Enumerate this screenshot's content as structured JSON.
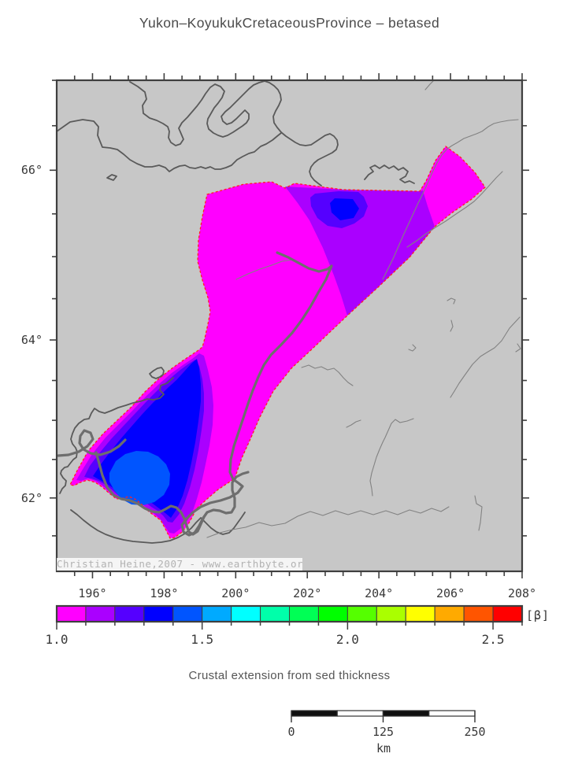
{
  "title": "Yukon–KoyukukCretaceousProvince – betased",
  "map": {
    "watermark": "Christian Heine,2007 - www.earthbyte.org",
    "land_color": "#c7c7c7",
    "coast_color": "#5a5a5a",
    "river_color": "#828282",
    "boundary_color": "#6e6e6e",
    "outline_color": "#ff2222",
    "frame_color": "#3f3f3f",
    "lon_axis": {
      "start": 195,
      "end": 208,
      "minor_step": 0.5,
      "major_ticks": [
        196,
        198,
        200,
        202,
        204,
        206,
        208
      ],
      "labels": [
        "196°",
        "198°",
        "200°",
        "202°",
        "204°",
        "206°",
        "208°"
      ]
    },
    "lat_axis": {
      "start": 61.05,
      "end": 67.08,
      "minor_step": 0.5,
      "major_ticks": [
        62,
        64,
        66
      ],
      "labels": [
        "62°",
        "64°",
        "66°"
      ]
    }
  },
  "beta_zones": [
    {
      "range": "1.0–1.1",
      "color": "#ff00ff"
    },
    {
      "range": "1.1–1.2",
      "color": "#aa00ff"
    },
    {
      "range": "1.2–1.3",
      "color": "#5500ff"
    },
    {
      "range": "1.3–1.4",
      "color": "#0000ff"
    },
    {
      "range": "1.4–1.5",
      "color": "#0055ff"
    }
  ],
  "colorbar": {
    "unit_label": "[β]",
    "min": 1.0,
    "max": 2.6,
    "cell_step": 0.1,
    "colors": [
      "#ff00ff",
      "#aa00ff",
      "#5500ff",
      "#0000ff",
      "#0055ff",
      "#00aaff",
      "#00ffff",
      "#00ffaa",
      "#00ff55",
      "#00ff00",
      "#55ff00",
      "#aaff00",
      "#ffff00",
      "#ffaa00",
      "#ff5500",
      "#ff0000"
    ],
    "major_tick_values": [
      1.0,
      1.5,
      2.0,
      2.5
    ],
    "tick_labels": [
      "1.0",
      "1.5",
      "2.0",
      "2.5"
    ]
  },
  "caption": "Crustal extension from sed thickness",
  "scalebar": {
    "tick_values": [
      0,
      125,
      250
    ],
    "tick_labels": [
      "0",
      "125",
      "250"
    ],
    "unit": "km",
    "segments": 4,
    "bar_black": "#101010",
    "bar_white": "#ffffff"
  },
  "map_data": {
    "type": "map",
    "projection": "Mercator",
    "region_lon_deg_e": [
      195,
      208
    ],
    "region_lat_deg_n": [
      61.05,
      67.08
    ],
    "variable": "beta (crustal extension factor) from sediment thickness",
    "summary": "Colored province polygon spans ~199°–207°E, 61.5°–65.8°N. Most of the province is beta 1.0–1.1 (magenta); a NE band reaches 1.1–1.3 (purple/violet); the SW lobe peaks at beta 1.4–1.5 (blue core near 197.4°E, 62.2°N)."
  }
}
